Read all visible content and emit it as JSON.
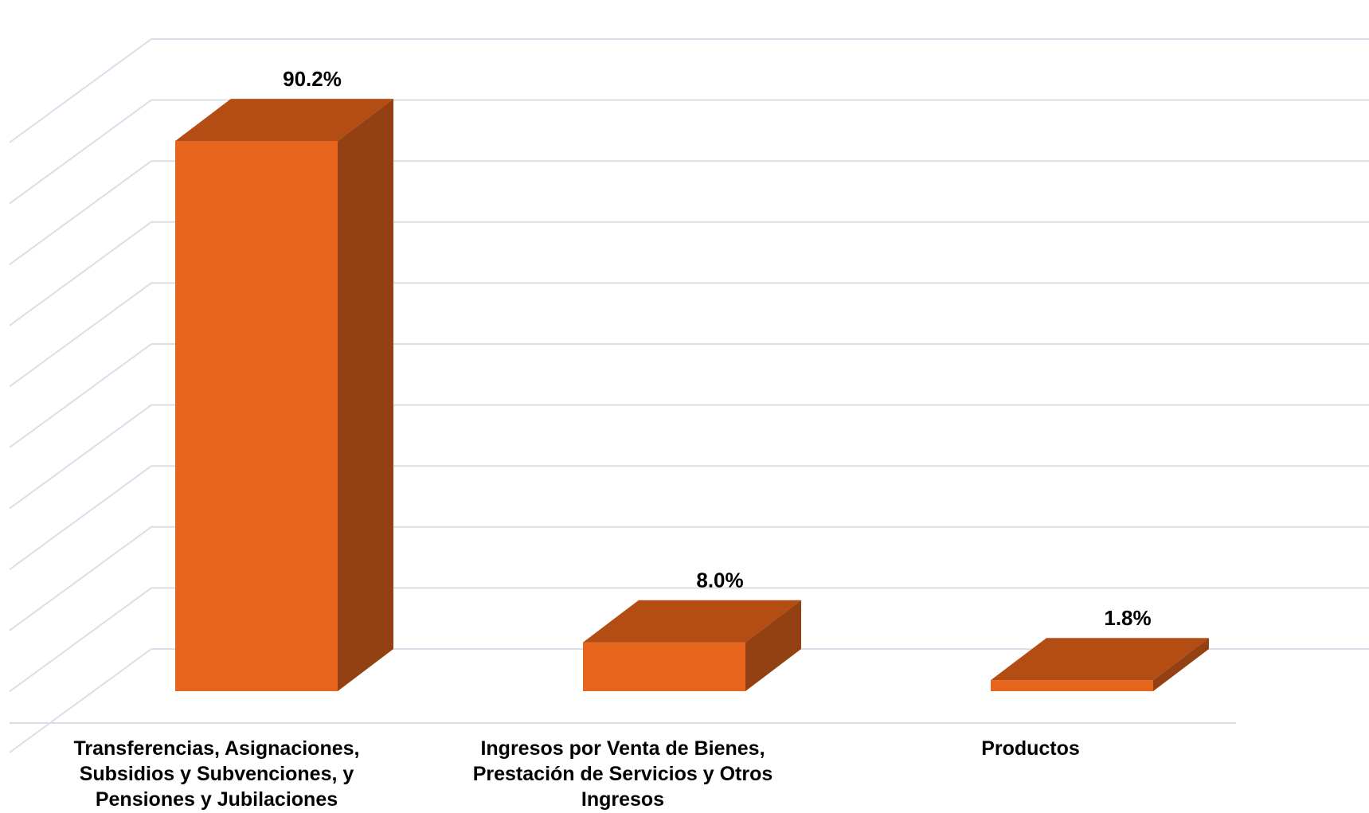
{
  "chart_data": {
    "type": "bar",
    "style": "3d-column",
    "categories": [
      [
        "Transferencias, Asignaciones,",
        "Subsidios y Subvenciones, y",
        "Pensiones y Jubilaciones"
      ],
      [
        "Ingresos por Venta de Bienes,",
        "Prestación de Servicios y Otros",
        "Ingresos"
      ],
      [
        "Productos"
      ]
    ],
    "values": [
      90.2,
      8.0,
      1.8
    ],
    "data_labels": [
      "90.2%",
      "8.0%",
      "1.8%"
    ],
    "ylim": [
      0,
      100
    ],
    "grid": true,
    "legend": "none",
    "colors": {
      "front": "#E8651E",
      "top": "#B34D14",
      "side": "#934012",
      "grid": "#D9DEE8"
    }
  }
}
